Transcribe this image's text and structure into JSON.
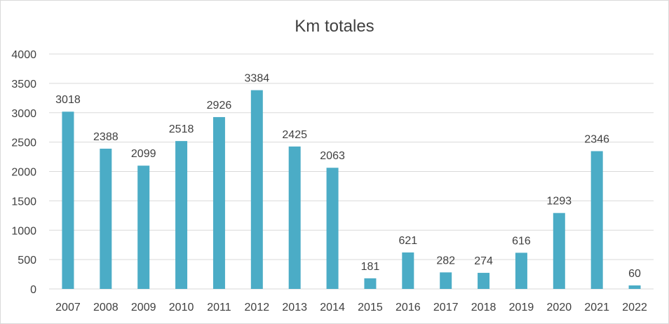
{
  "chart_data": {
    "type": "bar",
    "title": "Km totales",
    "xlabel": "",
    "ylabel": "",
    "categories": [
      "2007",
      "2008",
      "2009",
      "2010",
      "2011",
      "2012",
      "2013",
      "2014",
      "2015",
      "2016",
      "2017",
      "2018",
      "2019",
      "2020",
      "2021",
      "2022"
    ],
    "values": [
      3018,
      2388,
      2099,
      2518,
      2926,
      3384,
      2425,
      2063,
      181,
      621,
      282,
      274,
      616,
      1293,
      2346,
      60
    ],
    "ylim": [
      0,
      4000
    ],
    "yticks": [
      0,
      500,
      1000,
      1500,
      2000,
      2500,
      3000,
      3500,
      4000
    ],
    "grid": true,
    "legend": "none",
    "data_labels": true,
    "bar_color": "#4bacc6"
  }
}
